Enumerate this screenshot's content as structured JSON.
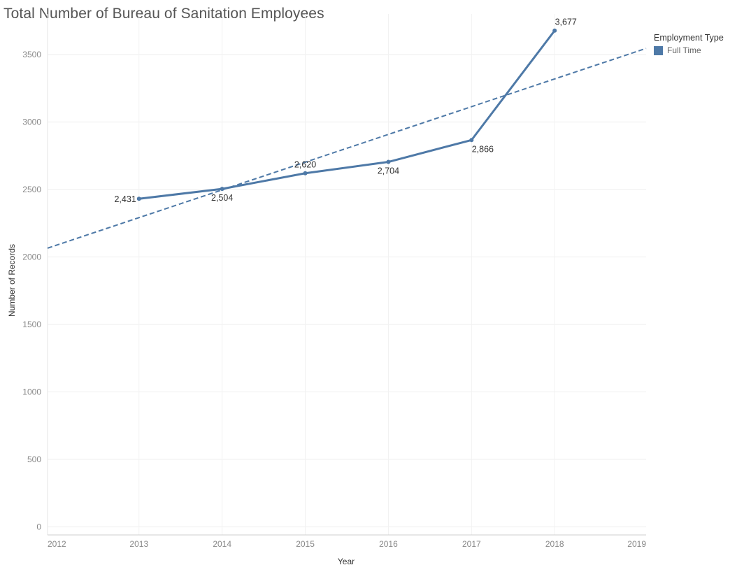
{
  "chart_data": {
    "type": "line",
    "title": "Total Number of Bureau of Sanitation Employees",
    "xlabel": "Year",
    "ylabel": "Number of Records",
    "x_ticks": [
      "2012",
      "2013",
      "2014",
      "2015",
      "2016",
      "2017",
      "2018",
      "2019"
    ],
    "y_ticks": [
      "0",
      "500",
      "1000",
      "1500",
      "2000",
      "2500",
      "3000",
      "3500"
    ],
    "xlim": [
      2011.9,
      2019.1
    ],
    "ylim": [
      -60,
      3800
    ],
    "grid": true,
    "legend": {
      "title": "Employment Type",
      "placement": "top-right",
      "items": [
        {
          "label": "Full Time",
          "color": "#4e79a7"
        }
      ]
    },
    "series": [
      {
        "name": "Full Time",
        "color": "#4e79a7",
        "x": [
          2013,
          2014,
          2015,
          2016,
          2017,
          2018
        ],
        "values": [
          2431,
          2504,
          2620,
          2704,
          2866,
          3677
        ],
        "labels": [
          "2,431",
          "2,504",
          "2,620",
          "2,704",
          "2,866",
          "3,677"
        ]
      }
    ],
    "trend_line": {
      "style": "dashed",
      "color": "#4e79a7",
      "x": [
        2011.9,
        2019.1
      ],
      "values": [
        2065,
        3545
      ]
    }
  }
}
